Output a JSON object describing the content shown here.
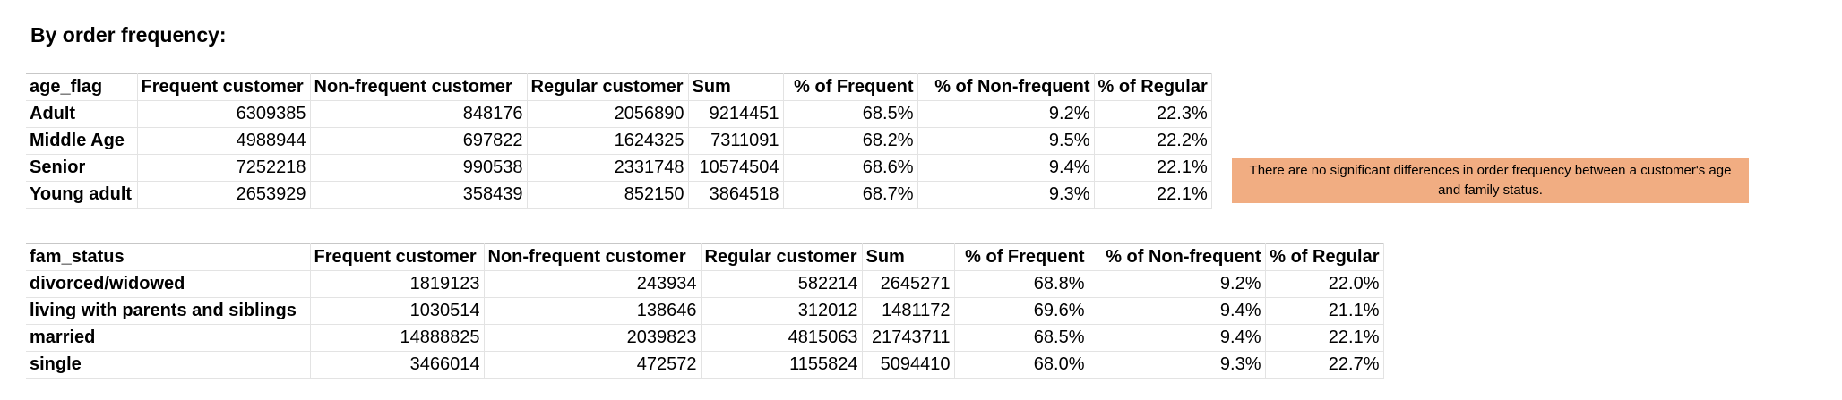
{
  "title": "By order frequency:",
  "table_age": {
    "headers": [
      "age_flag",
      "Frequent customer",
      "Non-frequent customer",
      "Regular customer",
      "Sum",
      "% of Frequent",
      "% of Non-frequent",
      "% of Regular"
    ],
    "rows": [
      [
        "Adult",
        "6309385",
        "848176",
        "2056890",
        "9214451",
        "68.5%",
        "9.2%",
        "22.3%"
      ],
      [
        "Middle Age",
        "4988944",
        "697822",
        "1624325",
        "7311091",
        "68.2%",
        "9.5%",
        "22.2%"
      ],
      [
        "Senior",
        "7252218",
        "990538",
        "2331748",
        "10574504",
        "68.6%",
        "9.4%",
        "22.1%"
      ],
      [
        "Young adult",
        "2653929",
        "358439",
        "852150",
        "3864518",
        "68.7%",
        "9.3%",
        "22.1%"
      ]
    ]
  },
  "table_fam": {
    "headers": [
      "fam_status",
      "Frequent customer",
      "Non-frequent customer",
      "Regular customer",
      "Sum",
      "% of Frequent",
      "% of Non-frequent",
      "% of Regular"
    ],
    "rows": [
      [
        "divorced/widowed",
        "1819123",
        "243934",
        "582214",
        "2645271",
        "68.8%",
        "9.2%",
        "22.0%"
      ],
      [
        "living with parents and siblings",
        "1030514",
        "138646",
        "312012",
        "1481172",
        "69.6%",
        "9.4%",
        "21.1%"
      ],
      [
        "married",
        "14888825",
        "2039823",
        "4815063",
        "21743711",
        "68.5%",
        "9.4%",
        "22.1%"
      ],
      [
        "single",
        "3466014",
        "472572",
        "1155824",
        "5094410",
        "68.0%",
        "9.3%",
        "22.7%"
      ]
    ]
  },
  "note": {
    "text": "There are no significant differences in order frequency between a customer's age and family status.",
    "background": "#f1ad82"
  }
}
